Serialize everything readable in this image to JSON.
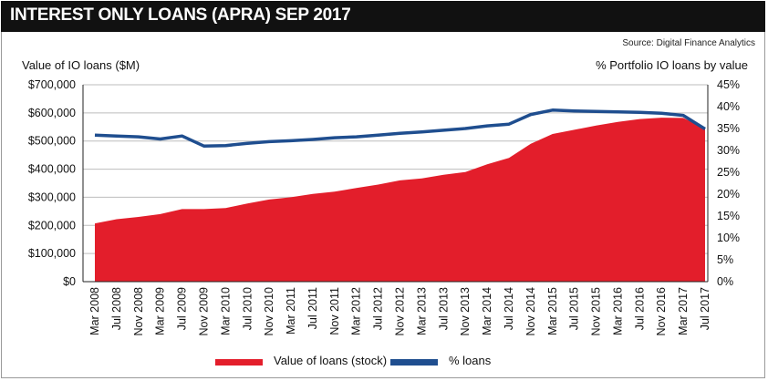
{
  "title": "INTEREST ONLY LOANS (APRA) SEP 2017",
  "source": "Source: Digital Finance Analytics",
  "colors": {
    "value_fill": "#e31e2b",
    "pct_line": "#1f4e8f",
    "grid": "#bdbdbd",
    "title_bg": "#111111"
  },
  "chart_data": {
    "type": "area",
    "title": "INTEREST ONLY LOANS (APRA) SEP 2017",
    "ylabel_left": "Value of IO loans ($M)",
    "ylabel_right": "% Portfolio IO loans by value",
    "ylim_left": [
      0,
      700000
    ],
    "ylim_right": [
      0,
      45
    ],
    "yticks_left": [
      "$0",
      "$100,000",
      "$200,000",
      "$300,000",
      "$400,000",
      "$500,000",
      "$600,000",
      "$700,000"
    ],
    "yticks_right": [
      "0%",
      "5%",
      "10%",
      "15%",
      "20%",
      "25%",
      "30%",
      "35%",
      "40%",
      "45%"
    ],
    "xtick_labels": [
      "Mar 2008",
      "Jul 2008",
      "Nov 2008",
      "Mar 2009",
      "Jul 2009",
      "Nov 2009",
      "Mar 2010",
      "Jul 2010",
      "Nov 2010",
      "Mar 2011",
      "Jul 2011",
      "Nov 2011",
      "Mar 2012",
      "Jul 2012",
      "Nov 2012",
      "Mar 2013",
      "Jul 2013",
      "Nov 2013",
      "Mar 2014",
      "Jul 2014",
      "Nov 2014",
      "Mar 2015",
      "Jul 2015",
      "Nov 2015",
      "Mar 2016",
      "Jul 2016",
      "Nov 2016",
      "Mar 2017",
      "Jul 2017"
    ],
    "grid": true,
    "legend": "bottom",
    "series": [
      {
        "name": "Value of loans (stock)",
        "type": "area",
        "axis": "left",
        "values": [
          207000,
          222000,
          230000,
          240000,
          258000,
          258000,
          262000,
          278000,
          292000,
          300000,
          312000,
          320000,
          333000,
          345000,
          360000,
          367000,
          380000,
          390000,
          417000,
          440000,
          490000,
          525000,
          540000,
          555000,
          568000,
          578000,
          583000,
          582000,
          545000
        ]
      },
      {
        "name": "% loans",
        "type": "line",
        "axis": "right",
        "values": [
          33.5,
          33.3,
          33.1,
          32.6,
          33.3,
          31.0,
          31.1,
          31.6,
          32.0,
          32.2,
          32.5,
          32.9,
          33.1,
          33.5,
          33.9,
          34.2,
          34.6,
          35.0,
          35.6,
          36.0,
          38.2,
          39.2,
          39.0,
          38.9,
          38.8,
          38.7,
          38.5,
          38.0,
          34.9
        ]
      }
    ]
  }
}
